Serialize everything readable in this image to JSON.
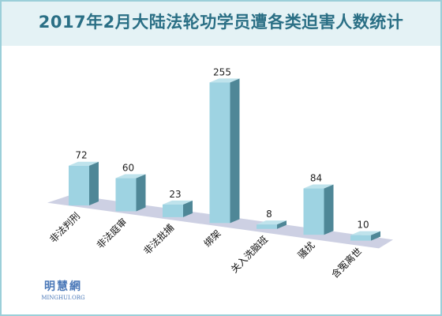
{
  "title": "2017年2月大陆法轮功学员遭各类迫害人数统计",
  "logo": {
    "text_cn": "明慧網",
    "text_en": "MINGHUI.ORG"
  },
  "colors": {
    "bar_front": "#9ed3e2",
    "bar_side": "#4f8797",
    "bar_top": "#bfe3ec",
    "floor": "#c8cbe0",
    "title": "#2a6f85"
  },
  "chart_data": {
    "type": "bar",
    "title": "2017年2月大陆法轮功学员遭各类迫害人数统计",
    "categories": [
      "非法判刑",
      "非法庭审",
      "非法批捕",
      "绑架",
      "关入洗脑班",
      "骚扰",
      "含冤离世"
    ],
    "values": [
      72,
      60,
      23,
      255,
      8,
      84,
      10
    ],
    "ylim": [
      0,
      255
    ],
    "grid": false,
    "legend": "none",
    "style": "3d"
  }
}
